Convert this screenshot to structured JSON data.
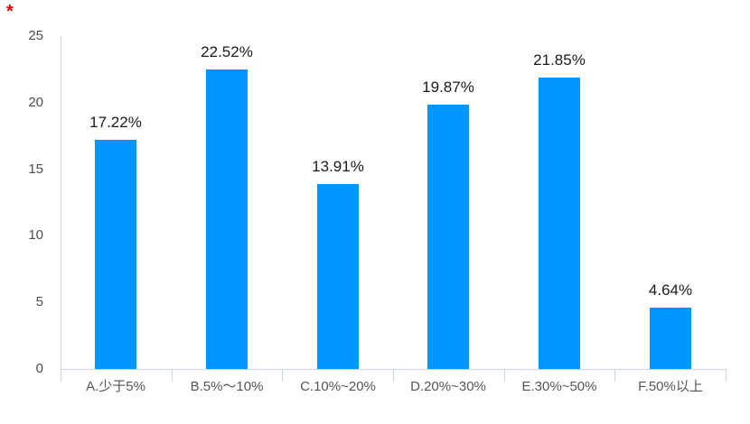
{
  "page": {
    "background": "#ffffff",
    "required_marker": "*",
    "required_marker_color": "#e50000"
  },
  "chart_data": {
    "type": "bar",
    "title": "",
    "xlabel": "",
    "ylabel": "",
    "categories": [
      "A.少于5%",
      "B.5%～10%",
      "C.10%~20%",
      "D.20%~30%",
      "E.30%~50%",
      "F.50%以上"
    ],
    "values": [
      17.22,
      22.52,
      13.91,
      19.87,
      21.85,
      4.64
    ],
    "value_labels": [
      "17.22%",
      "22.52%",
      "13.91%",
      "19.87%",
      "21.85%",
      "4.64%"
    ],
    "ylim": [
      0,
      25
    ],
    "yticks": [
      0,
      5,
      10,
      15,
      20,
      25
    ],
    "grid": false,
    "legend": "none",
    "colors": {
      "bar": "#0096ff",
      "axis_line": "#c9d4e6",
      "y_tick_label": "#4d4d4d",
      "x_tick_label": "#555555",
      "data_label": "#1a1a1a"
    }
  }
}
